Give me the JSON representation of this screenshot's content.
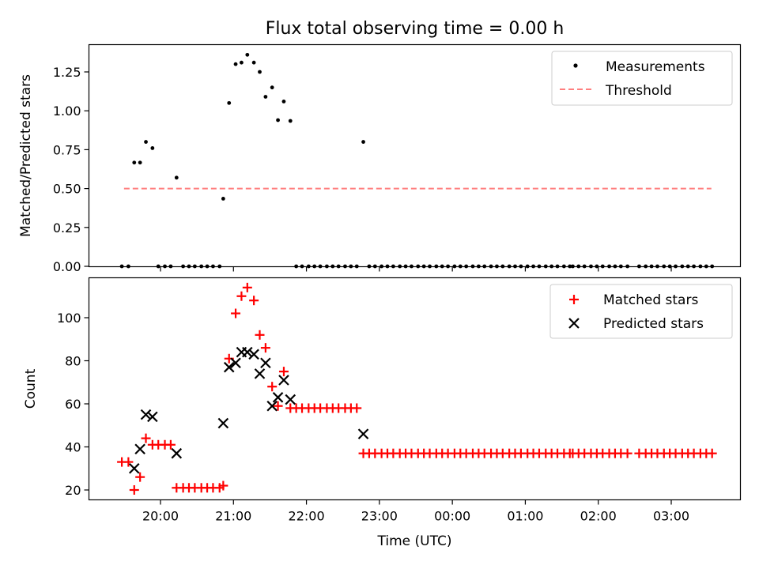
{
  "title": "Flux total observing time = 0.00 h",
  "chart_data": [
    {
      "type": "scatter",
      "ylabel": "Matched/Predicted stars",
      "ylim": [
        0,
        1.4
      ],
      "yticks": [
        "0.00",
        "0.25",
        "0.50",
        "0.75",
        "1.00",
        "1.25"
      ],
      "legend_position": "top-right",
      "series": [
        {
          "name": "Measurements",
          "marker": "dot",
          "color": "#000000",
          "points": [
            [
              19.47,
              0
            ],
            [
              19.56,
              0
            ],
            [
              19.64,
              0.667
            ],
            [
              19.72,
              0.667
            ],
            [
              19.8,
              0.8
            ],
            [
              19.89,
              0.76
            ],
            [
              19.97,
              0
            ],
            [
              20.06,
              0
            ],
            [
              20.14,
              0
            ],
            [
              20.22,
              0.57
            ],
            [
              20.31,
              0
            ],
            [
              20.39,
              0
            ],
            [
              20.47,
              0
            ],
            [
              20.56,
              0
            ],
            [
              20.64,
              0
            ],
            [
              20.72,
              0
            ],
            [
              20.81,
              0
            ],
            [
              20.86,
              0.435
            ],
            [
              20.94,
              1.05
            ],
            [
              21.03,
              1.3
            ],
            [
              21.11,
              1.31
            ],
            [
              21.19,
              1.36
            ],
            [
              21.28,
              1.31
            ],
            [
              21.36,
              1.25
            ],
            [
              21.44,
              1.09
            ],
            [
              21.53,
              1.15
            ],
            [
              21.61,
              0.94
            ],
            [
              21.69,
              1.06
            ],
            [
              21.78,
              0.935
            ],
            [
              21.86,
              0
            ],
            [
              21.94,
              0
            ],
            [
              22.03,
              0
            ],
            [
              22.11,
              0
            ],
            [
              22.19,
              0
            ],
            [
              22.28,
              0
            ],
            [
              22.36,
              0
            ],
            [
              22.44,
              0
            ],
            [
              22.53,
              0
            ],
            [
              22.61,
              0
            ],
            [
              22.69,
              0
            ],
            [
              22.78,
              0.8
            ],
            [
              22.86,
              0
            ],
            [
              22.94,
              0
            ],
            [
              23.03,
              0
            ],
            [
              23.11,
              0
            ],
            [
              23.19,
              0
            ],
            [
              23.28,
              0
            ],
            [
              23.36,
              0
            ],
            [
              23.44,
              0
            ],
            [
              23.53,
              0
            ],
            [
              23.61,
              0
            ],
            [
              23.69,
              0
            ],
            [
              23.78,
              0
            ],
            [
              23.86,
              0
            ],
            [
              23.94,
              0
            ],
            [
              24.03,
              0
            ],
            [
              24.11,
              0
            ],
            [
              24.19,
              0
            ],
            [
              24.28,
              0
            ],
            [
              24.36,
              0
            ],
            [
              24.44,
              0
            ],
            [
              24.53,
              0
            ],
            [
              24.61,
              0
            ],
            [
              24.69,
              0
            ],
            [
              24.78,
              0
            ],
            [
              24.86,
              0
            ],
            [
              24.94,
              0
            ],
            [
              25.03,
              0
            ],
            [
              25.11,
              0
            ],
            [
              25.19,
              0
            ],
            [
              25.28,
              0
            ],
            [
              25.36,
              0
            ],
            [
              25.44,
              0
            ],
            [
              25.53,
              0
            ],
            [
              25.61,
              0
            ],
            [
              25.65,
              0
            ],
            [
              25.73,
              0
            ],
            [
              25.81,
              0
            ],
            [
              25.9,
              0
            ],
            [
              25.98,
              0
            ],
            [
              26.06,
              0
            ],
            [
              26.15,
              0
            ],
            [
              26.23,
              0
            ],
            [
              26.31,
              0
            ],
            [
              26.4,
              0
            ],
            [
              26.56,
              0
            ],
            [
              26.65,
              0
            ],
            [
              26.73,
              0
            ],
            [
              26.81,
              0
            ],
            [
              26.9,
              0
            ],
            [
              26.98,
              0
            ],
            [
              27.06,
              0
            ],
            [
              27.15,
              0
            ],
            [
              27.23,
              0
            ],
            [
              27.31,
              0
            ],
            [
              27.4,
              0
            ],
            [
              27.48,
              0
            ],
            [
              27.56,
              0
            ]
          ]
        },
        {
          "name": "Threshold",
          "marker": "dashed-line",
          "color": "#ff7f7f",
          "x": [
            19.5,
            27.55
          ],
          "y": [
            0.5,
            0.5
          ]
        }
      ]
    },
    {
      "type": "scatter",
      "xlabel": "Time (UTC)",
      "ylabel": "Count",
      "ylim": [
        15,
        118
      ],
      "yticks": [
        "20",
        "40",
        "60",
        "80",
        "100"
      ],
      "xticks": [
        "20:00",
        "21:00",
        "22:00",
        "23:00",
        "00:00",
        "01:00",
        "02:00",
        "03:00"
      ],
      "legend_position": "top-right",
      "series": [
        {
          "name": "Matched stars",
          "marker": "plus",
          "color": "#ff0000",
          "points": [
            [
              19.47,
              33
            ],
            [
              19.56,
              33
            ],
            [
              19.64,
              20
            ],
            [
              19.72,
              26
            ],
            [
              19.8,
              44
            ],
            [
              19.89,
              41
            ],
            [
              19.97,
              41
            ],
            [
              20.06,
              41
            ],
            [
              20.14,
              41
            ],
            [
              20.22,
              21
            ],
            [
              20.31,
              21
            ],
            [
              20.39,
              21
            ],
            [
              20.47,
              21
            ],
            [
              20.56,
              21
            ],
            [
              20.64,
              21
            ],
            [
              20.72,
              21
            ],
            [
              20.81,
              21
            ],
            [
              20.86,
              22
            ],
            [
              20.94,
              81
            ],
            [
              21.03,
              102
            ],
            [
              21.11,
              110
            ],
            [
              21.19,
              114
            ],
            [
              21.28,
              108
            ],
            [
              21.36,
              92
            ],
            [
              21.44,
              86
            ],
            [
              21.53,
              68
            ],
            [
              21.61,
              59
            ],
            [
              21.69,
              75
            ],
            [
              21.78,
              58
            ],
            [
              21.86,
              58
            ],
            [
              21.94,
              58
            ],
            [
              22.03,
              58
            ],
            [
              22.11,
              58
            ],
            [
              22.19,
              58
            ],
            [
              22.28,
              58
            ],
            [
              22.36,
              58
            ],
            [
              22.44,
              58
            ],
            [
              22.53,
              58
            ],
            [
              22.61,
              58
            ],
            [
              22.69,
              58
            ],
            [
              22.78,
              37
            ],
            [
              22.86,
              37
            ],
            [
              22.94,
              37
            ],
            [
              23.03,
              37
            ],
            [
              23.11,
              37
            ],
            [
              23.19,
              37
            ],
            [
              23.28,
              37
            ],
            [
              23.36,
              37
            ],
            [
              23.44,
              37
            ],
            [
              23.53,
              37
            ],
            [
              23.61,
              37
            ],
            [
              23.69,
              37
            ],
            [
              23.78,
              37
            ],
            [
              23.86,
              37
            ],
            [
              23.94,
              37
            ],
            [
              24.03,
              37
            ],
            [
              24.11,
              37
            ],
            [
              24.19,
              37
            ],
            [
              24.28,
              37
            ],
            [
              24.36,
              37
            ],
            [
              24.44,
              37
            ],
            [
              24.53,
              37
            ],
            [
              24.61,
              37
            ],
            [
              24.69,
              37
            ],
            [
              24.78,
              37
            ],
            [
              24.86,
              37
            ],
            [
              24.94,
              37
            ],
            [
              25.03,
              37
            ],
            [
              25.11,
              37
            ],
            [
              25.19,
              37
            ],
            [
              25.28,
              37
            ],
            [
              25.36,
              37
            ],
            [
              25.44,
              37
            ],
            [
              25.53,
              37
            ],
            [
              25.61,
              37
            ],
            [
              25.65,
              37
            ],
            [
              25.73,
              37
            ],
            [
              25.81,
              37
            ],
            [
              25.9,
              37
            ],
            [
              25.98,
              37
            ],
            [
              26.06,
              37
            ],
            [
              26.15,
              37
            ],
            [
              26.23,
              37
            ],
            [
              26.31,
              37
            ],
            [
              26.4,
              37
            ],
            [
              26.56,
              37
            ],
            [
              26.65,
              37
            ],
            [
              26.73,
              37
            ],
            [
              26.81,
              37
            ],
            [
              26.9,
              37
            ],
            [
              26.98,
              37
            ],
            [
              27.06,
              37
            ],
            [
              27.15,
              37
            ],
            [
              27.23,
              37
            ],
            [
              27.31,
              37
            ],
            [
              27.4,
              37
            ],
            [
              27.48,
              37
            ],
            [
              27.56,
              37
            ]
          ]
        },
        {
          "name": "Predicted stars",
          "marker": "x",
          "color": "#000000",
          "points": [
            [
              19.64,
              30
            ],
            [
              19.72,
              39
            ],
            [
              19.8,
              55
            ],
            [
              19.89,
              54
            ],
            [
              20.22,
              37
            ],
            [
              20.86,
              51
            ],
            [
              20.94,
              77
            ],
            [
              21.03,
              79
            ],
            [
              21.11,
              84
            ],
            [
              21.19,
              84
            ],
            [
              21.28,
              83
            ],
            [
              21.36,
              74
            ],
            [
              21.44,
              79
            ],
            [
              21.53,
              59
            ],
            [
              21.61,
              63
            ],
            [
              21.69,
              71
            ],
            [
              21.78,
              62
            ],
            [
              22.78,
              46
            ]
          ]
        }
      ]
    }
  ]
}
